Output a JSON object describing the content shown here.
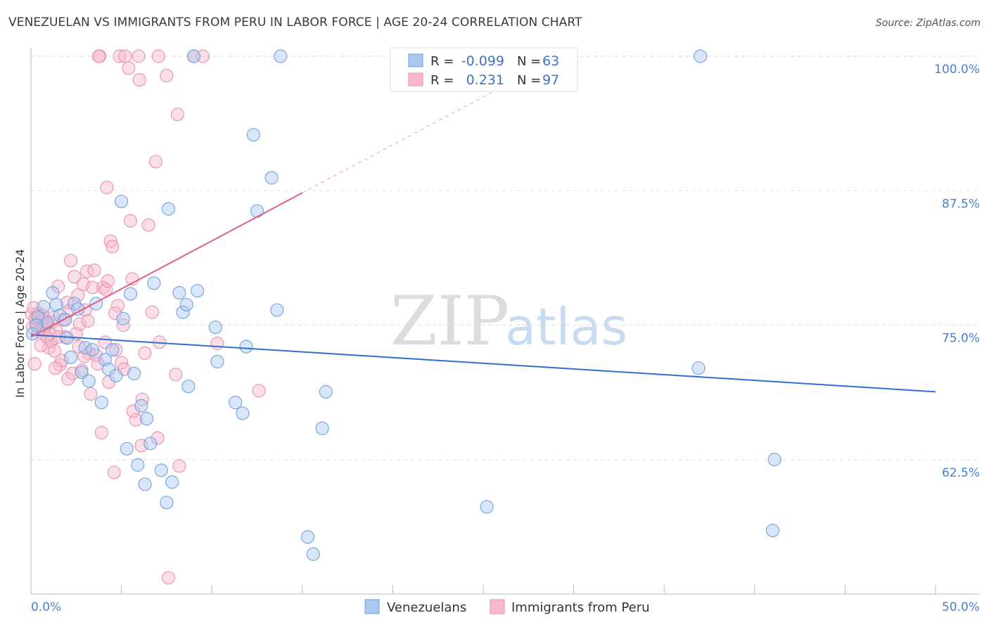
{
  "header": {
    "title": "VENEZUELAN VS IMMIGRANTS FROM PERU IN LABOR FORCE | AGE 20-24 CORRELATION CHART",
    "source": "Source: ZipAtlas.com"
  },
  "watermark": {
    "zip": "ZIP",
    "atlas": "atlas"
  },
  "colors": {
    "blue_fill": "#aac8ee",
    "blue_stroke": "#6f9fdc",
    "blue_line": "#2f6fcf",
    "pink_fill": "#f6b9cb",
    "pink_stroke": "#e88fab",
    "pink_line": "#e05f8a",
    "axis_text": "#4a7fd0",
    "grid": "#dddddd"
  },
  "legend": {
    "rows": [
      {
        "r_label": "R =",
        "r_value": "-0.099",
        "n_label": "N =",
        "n_value": "63",
        "series": "blue"
      },
      {
        "r_label": "R =",
        "r_value": "0.231",
        "n_label": "N =",
        "n_value": "97",
        "series": "pink"
      }
    ]
  },
  "chart_data": {
    "type": "scatter",
    "title": "VENEZUELAN VS IMMIGRANTS FROM PERU IN LABOR FORCE | AGE 20-24 CORRELATION CHART",
    "xlabel": "",
    "ylabel": "In Labor Force | Age 20-24",
    "xlim": [
      0,
      50
    ],
    "ylim": [
      50,
      100
    ],
    "x_tick_labels": [
      "0.0%",
      "50.0%"
    ],
    "y_ticks": [
      {
        "value": 100,
        "label": "100.0%"
      },
      {
        "value": 87.5,
        "label": "87.5%"
      },
      {
        "value": 75,
        "label": "75.0%"
      },
      {
        "value": 62.5,
        "label": "62.5%"
      }
    ],
    "series": [
      {
        "name": "Venezuelans",
        "color": "blue",
        "trend": {
          "x": [
            0,
            50
          ],
          "y": [
            74.1,
            68.8
          ]
        },
        "points": [
          [
            0.1,
            74.2
          ],
          [
            0.4,
            75.8
          ],
          [
            0.7,
            76.7
          ],
          [
            0.9,
            75.2
          ],
          [
            1.2,
            78.0
          ],
          [
            1.4,
            76.9
          ],
          [
            1.6,
            75.9
          ],
          [
            1.9,
            75.5
          ],
          [
            2.0,
            73.8
          ],
          [
            2.2,
            72.0
          ],
          [
            2.4,
            77.0
          ],
          [
            2.6,
            76.5
          ],
          [
            2.8,
            70.6
          ],
          [
            3.0,
            72.9
          ],
          [
            3.2,
            69.8
          ],
          [
            3.4,
            72.7
          ],
          [
            3.6,
            77.0
          ],
          [
            3.9,
            67.8
          ],
          [
            4.1,
            71.8
          ],
          [
            4.3,
            70.9
          ],
          [
            4.5,
            72.7
          ],
          [
            4.7,
            70.3
          ],
          [
            5.0,
            86.5
          ],
          [
            5.1,
            75.6
          ],
          [
            5.3,
            63.5
          ],
          [
            5.5,
            77.9
          ],
          [
            5.7,
            70.5
          ],
          [
            5.9,
            62.0
          ],
          [
            6.1,
            67.5
          ],
          [
            6.3,
            60.2
          ],
          [
            6.4,
            66.3
          ],
          [
            6.6,
            64.0
          ],
          [
            6.8,
            78.9
          ],
          [
            7.2,
            61.5
          ],
          [
            7.5,
            58.5
          ],
          [
            7.6,
            85.8
          ],
          [
            7.8,
            60.4
          ],
          [
            8.2,
            78.0
          ],
          [
            8.4,
            76.2
          ],
          [
            8.6,
            76.9
          ],
          [
            8.7,
            69.3
          ],
          [
            9.0,
            100.0
          ],
          [
            9.2,
            78.2
          ],
          [
            10.2,
            74.8
          ],
          [
            10.3,
            71.6
          ],
          [
            11.3,
            67.8
          ],
          [
            11.7,
            66.8
          ],
          [
            11.9,
            73.0
          ],
          [
            12.3,
            92.7
          ],
          [
            12.5,
            85.6
          ],
          [
            13.3,
            88.7
          ],
          [
            13.6,
            76.4
          ],
          [
            13.8,
            100.0
          ],
          [
            15.3,
            55.3
          ],
          [
            15.6,
            53.7
          ],
          [
            16.1,
            65.4
          ],
          [
            16.3,
            68.8
          ],
          [
            25.2,
            58.1
          ],
          [
            36.9,
            71.0
          ],
          [
            37.0,
            100.0
          ],
          [
            41.1,
            62.5
          ],
          [
            41.0,
            55.9
          ],
          [
            0.3,
            75.0
          ]
        ]
      },
      {
        "name": "Immigrants from Peru",
        "color": "pink",
        "trend": {
          "x": [
            0,
            15
          ],
          "y": [
            73.9,
            87.3
          ]
        },
        "trend_extension": {
          "x": [
            15,
            27
          ],
          "y": [
            87.3,
            98.0
          ]
        },
        "points": [
          [
            0.05,
            76.0
          ],
          [
            0.1,
            74.8
          ],
          [
            0.2,
            71.4
          ],
          [
            0.3,
            75.2
          ],
          [
            0.4,
            76.1
          ],
          [
            0.5,
            75.4
          ],
          [
            0.6,
            74.9
          ],
          [
            0.7,
            74.6
          ],
          [
            0.8,
            75.0
          ],
          [
            0.9,
            73.8
          ],
          [
            1.0,
            72.9
          ],
          [
            1.1,
            73.5
          ],
          [
            1.2,
            75.3
          ],
          [
            1.3,
            72.6
          ],
          [
            1.4,
            74.5
          ],
          [
            1.5,
            78.6
          ],
          [
            1.6,
            71.3
          ],
          [
            1.7,
            71.7
          ],
          [
            1.8,
            75.5
          ],
          [
            1.9,
            73.9
          ],
          [
            2.0,
            77.1
          ],
          [
            2.1,
            76.3
          ],
          [
            2.2,
            81.0
          ],
          [
            2.3,
            70.5
          ],
          [
            2.4,
            79.5
          ],
          [
            2.5,
            74.2
          ],
          [
            2.6,
            77.8
          ],
          [
            2.7,
            75.1
          ],
          [
            2.8,
            70.8
          ],
          [
            2.9,
            78.8
          ],
          [
            3.0,
            76.4
          ],
          [
            3.1,
            80.0
          ],
          [
            3.2,
            72.4
          ],
          [
            3.3,
            68.6
          ],
          [
            3.4,
            78.5
          ],
          [
            3.5,
            80.1
          ],
          [
            3.6,
            72.2
          ],
          [
            3.7,
            71.4
          ],
          [
            3.8,
            100.0
          ],
          [
            3.9,
            65.0
          ],
          [
            4.0,
            78.5
          ],
          [
            4.1,
            73.4
          ],
          [
            4.2,
            87.8
          ],
          [
            4.3,
            69.7
          ],
          [
            4.4,
            82.8
          ],
          [
            4.5,
            82.3
          ],
          [
            4.6,
            61.3
          ],
          [
            4.7,
            72.7
          ],
          [
            4.8,
            76.8
          ],
          [
            4.9,
            100.0
          ],
          [
            5.0,
            71.5
          ],
          [
            5.1,
            75.0
          ],
          [
            5.2,
            100.0
          ],
          [
            5.4,
            98.9
          ],
          [
            5.5,
            84.7
          ],
          [
            5.6,
            79.3
          ],
          [
            5.8,
            66.2
          ],
          [
            6.0,
            97.8
          ],
          [
            6.1,
            63.8
          ],
          [
            6.3,
            72.4
          ],
          [
            6.5,
            84.3
          ],
          [
            6.7,
            76.2
          ],
          [
            6.9,
            90.2
          ],
          [
            7.0,
            64.5
          ],
          [
            7.1,
            73.4
          ],
          [
            7.5,
            98.2
          ],
          [
            7.6,
            51.5
          ],
          [
            8.1,
            94.6
          ],
          [
            8.2,
            61.9
          ],
          [
            9.0,
            100.0
          ],
          [
            9.5,
            100.0
          ],
          [
            10.3,
            73.3
          ],
          [
            12.6,
            68.9
          ],
          [
            0.15,
            76.6
          ],
          [
            0.25,
            75.6
          ],
          [
            0.45,
            74.4
          ],
          [
            0.65,
            75.9
          ],
          [
            0.85,
            75.4
          ],
          [
            1.05,
            74.2
          ],
          [
            1.25,
            75.7
          ],
          [
            3.75,
            100.0
          ],
          [
            5.95,
            100.0
          ],
          [
            7.05,
            100.0
          ],
          [
            4.15,
            78.3
          ],
          [
            2.65,
            73.0
          ],
          [
            3.15,
            75.4
          ],
          [
            4.65,
            76.1
          ],
          [
            5.15,
            70.9
          ],
          [
            5.65,
            67.0
          ],
          [
            6.15,
            68.1
          ],
          [
            8.0,
            70.4
          ],
          [
            1.35,
            71.0
          ],
          [
            2.05,
            70.0
          ],
          [
            2.95,
            72.1
          ],
          [
            0.55,
            73.1
          ],
          [
            1.55,
            73.9
          ],
          [
            4.25,
            79.1
          ]
        ]
      }
    ]
  },
  "bottom_legend": [
    {
      "label": "Venezuelans",
      "series": "blue"
    },
    {
      "label": "Immigrants from Peru",
      "series": "pink"
    }
  ]
}
